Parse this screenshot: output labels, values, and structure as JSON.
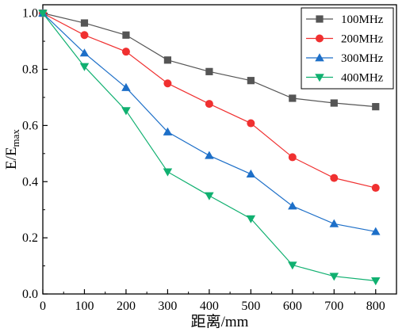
{
  "chart_data": {
    "type": "line",
    "xlabel": "距离/mm",
    "ylabel": {
      "base": "E/E",
      "sub": "max"
    },
    "x": [
      0,
      100,
      200,
      300,
      400,
      500,
      600,
      700,
      800
    ],
    "xlim": [
      0,
      850
    ],
    "ylim": [
      0,
      1.03
    ],
    "xticks": [
      0,
      100,
      200,
      300,
      400,
      500,
      600,
      700,
      800
    ],
    "yticks": [
      0.0,
      0.2,
      0.4,
      0.6,
      0.8,
      1.0
    ],
    "ytick_labels": [
      "0.0",
      "0.2",
      "0.4",
      "0.6",
      "0.8",
      "1.0"
    ],
    "legend_position": "top-right",
    "grid": false,
    "series": [
      {
        "name": "100MHz",
        "color": "#555555",
        "marker": "square",
        "values": [
          1.0,
          0.965,
          0.922,
          0.833,
          0.792,
          0.76,
          0.697,
          0.68,
          0.667
        ]
      },
      {
        "name": "200MHz",
        "color": "#f03030",
        "marker": "circle",
        "values": [
          1.0,
          0.922,
          0.863,
          0.75,
          0.677,
          0.608,
          0.487,
          0.413,
          0.378
        ]
      },
      {
        "name": "300MHz",
        "color": "#1d6fc8",
        "marker": "triangle-up",
        "values": [
          1.0,
          0.858,
          0.735,
          0.577,
          0.493,
          0.427,
          0.313,
          0.25,
          0.222
        ]
      },
      {
        "name": "400MHz",
        "color": "#10b070",
        "marker": "triangle-down",
        "values": [
          1.0,
          0.81,
          0.653,
          0.435,
          0.35,
          0.268,
          0.103,
          0.063,
          0.047
        ]
      }
    ]
  }
}
